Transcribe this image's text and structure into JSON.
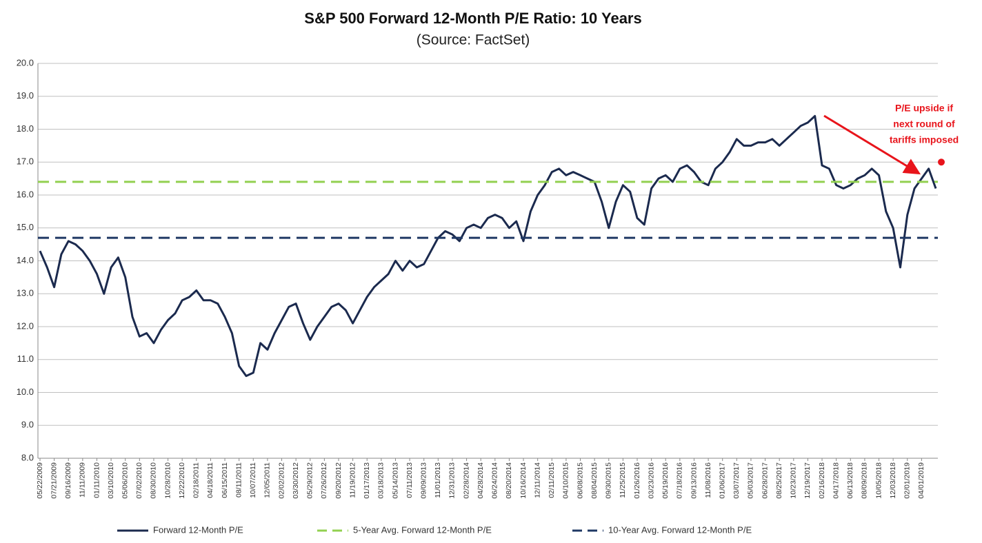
{
  "chart_data": {
    "type": "line",
    "title": "S&P 500 Forward 12-Month P/E Ratio: 10 Years",
    "subtitle": "(Source: FactSet)",
    "categories": [
      "05/22/2009",
      null,
      "07/21/2009",
      null,
      "09/16/2009",
      null,
      "11/11/2009",
      null,
      "01/11/2010",
      null,
      "03/10/2010",
      null,
      "05/06/2010",
      null,
      "07/02/2010",
      null,
      "08/30/2010",
      null,
      "10/28/2010",
      null,
      "12/22/2010",
      null,
      "02/18/2011",
      null,
      "04/18/2011",
      null,
      "06/15/2011",
      null,
      "08/11/2011",
      null,
      "10/07/2011",
      null,
      "12/05/2011",
      null,
      "02/02/2012",
      null,
      "03/30/2012",
      null,
      "05/29/2012",
      null,
      "07/26/2012",
      null,
      "09/20/2012",
      null,
      "11/19/2012",
      null,
      "01/17/2013",
      null,
      "03/18/2013",
      null,
      "05/14/2013",
      null,
      "07/11/2013",
      null,
      "09/09/2013",
      null,
      "11/01/2013",
      null,
      "12/31/2013",
      null,
      "02/28/2014",
      null,
      "04/28/2014",
      null,
      "06/24/2014",
      null,
      "08/20/2014",
      null,
      "10/16/2014",
      null,
      "12/11/2014",
      null,
      "02/11/2015",
      null,
      "04/10/2015",
      null,
      "06/08/2015",
      null,
      "08/04/2015",
      null,
      "09/30/2015",
      null,
      "11/25/2015",
      null,
      "01/26/2016",
      null,
      "03/23/2016",
      null,
      "05/19/2016",
      null,
      "07/18/2016",
      null,
      "09/13/2016",
      null,
      "11/08/2016",
      null,
      "01/06/2017",
      null,
      "03/07/2017",
      null,
      "05/03/2017",
      null,
      "06/28/2017",
      null,
      "08/25/2017",
      null,
      "10/23/2017",
      null,
      "12/19/2017",
      null,
      "02/16/2018",
      null,
      "04/17/2018",
      null,
      "06/13/2018",
      null,
      "08/09/2018",
      null,
      "10/05/2018",
      null,
      "12/03/2018",
      null,
      "02/01/2019",
      null,
      "04/01/2019",
      null,
      null
    ],
    "series": [
      {
        "name": "Forward 12-Month P/E",
        "color": "#1b2a4e",
        "values": [
          14.3,
          13.8,
          13.2,
          14.2,
          14.6,
          14.5,
          14.3,
          14.0,
          13.6,
          13.0,
          13.8,
          14.1,
          13.5,
          12.3,
          11.7,
          11.8,
          11.5,
          11.9,
          12.2,
          12.4,
          12.8,
          12.9,
          13.1,
          12.8,
          12.8,
          12.7,
          12.3,
          11.8,
          10.8,
          10.5,
          10.6,
          11.5,
          11.3,
          11.8,
          12.2,
          12.6,
          12.7,
          12.1,
          11.6,
          12.0,
          12.3,
          12.6,
          12.7,
          12.5,
          12.1,
          12.5,
          12.9,
          13.2,
          13.4,
          13.6,
          14.0,
          13.7,
          14.0,
          13.8,
          13.9,
          14.3,
          14.7,
          14.9,
          14.8,
          14.6,
          15.0,
          15.1,
          15.0,
          15.3,
          15.4,
          15.3,
          15.0,
          15.2,
          14.6,
          15.5,
          16.0,
          16.3,
          16.7,
          16.8,
          16.6,
          16.7,
          16.6,
          16.5,
          16.4,
          15.8,
          15.0,
          15.8,
          16.3,
          16.1,
          15.3,
          15.1,
          16.2,
          16.5,
          16.6,
          16.4,
          16.8,
          16.9,
          16.7,
          16.4,
          16.3,
          16.8,
          17.0,
          17.3,
          17.7,
          17.5,
          17.5,
          17.6,
          17.6,
          17.7,
          17.5,
          17.7,
          17.9,
          18.1,
          18.2,
          18.4,
          16.9,
          16.8,
          16.3,
          16.2,
          16.3,
          16.5,
          16.6,
          16.8,
          16.6,
          15.5,
          15.0,
          13.8,
          15.4,
          16.2,
          16.5,
          16.8,
          16.2
        ]
      },
      {
        "name": "5-Year Avg. Forward 12-Month P/E",
        "color": "#92d050",
        "value": 16.4,
        "style": "dashed"
      },
      {
        "name": "10-Year Avg. Forward 12-Month P/E",
        "color": "#1f3864",
        "value": 14.7,
        "style": "dashed"
      }
    ],
    "annotation": {
      "lines": [
        "P/E upside if",
        "next round of",
        "tariffs imposed"
      ],
      "color": "#e8141b",
      "value": 17.0
    },
    "ylim": [
      8,
      20
    ],
    "yticks": [
      {
        "value": 8,
        "label": "8.0"
      },
      {
        "value": 9,
        "label": "9.0"
      },
      {
        "value": 10,
        "label": "10.0"
      },
      {
        "value": 11,
        "label": "11.0"
      },
      {
        "value": 12,
        "label": "12.0"
      },
      {
        "value": 13,
        "label": "13.0"
      },
      {
        "value": 14,
        "label": "14.0"
      },
      {
        "value": 15,
        "label": "15.0"
      },
      {
        "value": 16,
        "label": "16.0"
      },
      {
        "value": 17,
        "label": "17.0"
      },
      {
        "value": 18,
        "label": "18.0"
      },
      {
        "value": 19,
        "label": "19.0"
      },
      {
        "value": 20,
        "label": "20.0"
      }
    ],
    "grid": true,
    "legend": "bottom"
  }
}
